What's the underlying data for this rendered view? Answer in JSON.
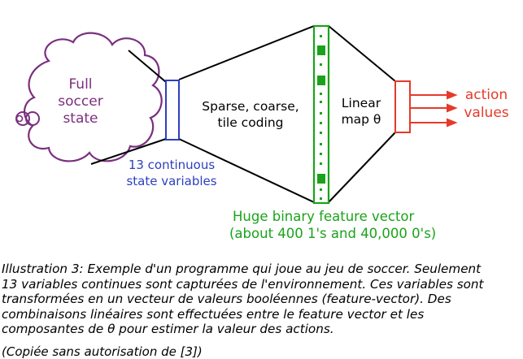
{
  "diagram": {
    "cloud_label": [
      "Full",
      "soccer",
      "state"
    ],
    "state_vars_label": [
      "13 continuous",
      "state variables"
    ],
    "coding_label": [
      "Sparse, coarse,",
      "tile coding"
    ],
    "linear_label": [
      "Linear",
      "map θ"
    ],
    "action_label": [
      "action",
      "values"
    ],
    "feature_label": [
      "Huge binary feature vector",
      "(about 400 1's and 40,000 0's)"
    ],
    "colors": {
      "cloud": "#7a2f7f",
      "state_box": "#2d3fc0",
      "feature": "#1aa31a",
      "action": "#e53a2a",
      "lines": "#000000"
    }
  },
  "caption": {
    "lines": [
      "Illustration 3: Exemple d'un programme qui joue au jeu de soccer. Seulement",
      "13 variables continues sont capturées de l'environnement. Ces variables sont",
      "transformées en un vecteur de valeurs booléennes (feature-vector). Des",
      "combinaisons linéaires sont effectuées entre le feature vector et les",
      "composantes de θ pour estimer la valeur des actions."
    ],
    "credit": "(Copiée sans autorisation de [3])"
  }
}
